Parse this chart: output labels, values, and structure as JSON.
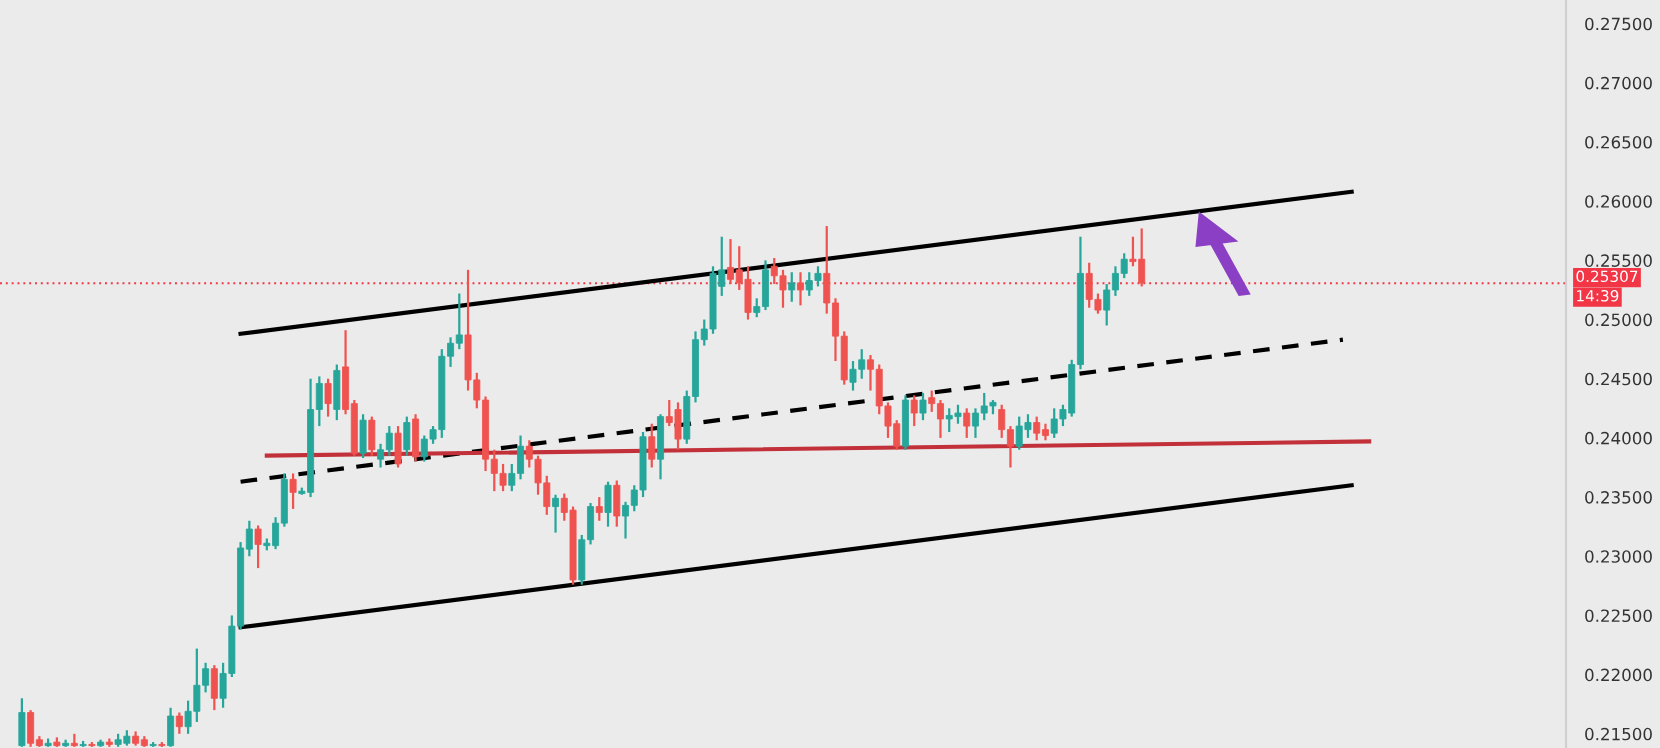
{
  "chart_data": {
    "type": "candlestick",
    "categories": [
      null,
      null,
      null,
      null,
      null,
      null,
      null,
      null,
      null,
      null,
      null,
      null,
      null,
      null,
      null,
      null,
      null,
      null,
      null,
      null,
      null,
      null,
      null,
      null,
      null,
      null,
      null,
      null,
      null,
      null,
      null,
      null,
      null,
      null,
      null,
      null,
      null,
      null,
      null,
      null,
      null,
      null,
      null,
      null,
      null,
      null,
      null,
      null,
      null,
      null,
      null,
      null,
      null,
      null,
      null,
      null,
      null,
      null,
      null,
      null,
      null,
      null,
      null,
      null,
      null,
      null,
      null,
      null,
      null,
      null,
      null,
      null,
      null,
      null,
      null,
      null,
      null,
      null,
      null,
      null,
      null,
      null,
      null,
      null,
      null,
      null,
      null,
      null,
      null,
      null,
      null,
      null,
      null,
      null,
      null,
      null,
      null,
      null,
      null,
      null,
      null,
      null,
      null,
      null,
      null,
      null,
      null,
      null,
      null,
      null,
      null,
      null,
      null,
      null,
      null,
      null,
      null,
      null,
      null,
      null,
      null,
      null,
      null,
      null,
      null,
      null,
      null,
      null,
      null,
      null,
      null,
      null,
      null,
      null,
      null,
      null,
      null,
      null,
      null,
      null,
      null,
      null,
      null,
      null,
      null,
      null,
      null,
      null,
      null,
      null,
      null,
      null,
      null,
      null,
      null,
      null,
      null,
      null,
      null,
      null,
      null,
      null,
      null,
      null,
      null,
      null,
      null,
      null,
      null,
      null,
      null,
      null,
      null,
      null,
      null,
      null,
      null,
      null,
      null
    ],
    "ohlc": [
      null,
      null,
      [
        0.214,
        0.218,
        0.2139,
        0.2168
      ],
      [
        0.2168,
        0.217,
        0.2139,
        0.2142
      ],
      [
        0.2145,
        0.2148,
        0.2139,
        0.214
      ],
      [
        0.214,
        0.2146,
        0.2139,
        0.2142
      ],
      [
        0.2143,
        0.2147,
        0.2139,
        0.214
      ],
      [
        0.214,
        0.2145,
        0.2139,
        0.2142
      ],
      [
        0.2142,
        0.215,
        0.2139,
        0.214
      ],
      [
        0.214,
        0.2144,
        0.2139,
        0.2141
      ],
      [
        0.2141,
        0.2143,
        0.2139,
        0.214
      ],
      [
        0.214,
        0.2145,
        0.2139,
        0.2143
      ],
      [
        0.2143,
        0.2146,
        0.2139,
        0.2141
      ],
      [
        0.2141,
        0.215,
        0.2139,
        0.2145
      ],
      [
        0.2142,
        0.2153,
        0.214,
        0.2148
      ],
      [
        0.2148,
        0.2152,
        0.214,
        0.2142
      ],
      [
        0.2145,
        0.2148,
        0.2139,
        0.214
      ],
      [
        0.214,
        0.2143,
        0.2139,
        0.2141
      ],
      [
        0.2141,
        0.2143,
        0.2139,
        0.214
      ],
      [
        0.214,
        0.2172,
        0.2139,
        0.2165
      ],
      [
        0.2165,
        0.2168,
        0.215,
        0.2156
      ],
      [
        0.2156,
        0.2178,
        0.215,
        0.2169
      ],
      [
        0.2169,
        0.2222,
        0.216,
        0.2191
      ],
      [
        0.2191,
        0.221,
        0.2185,
        0.2205
      ],
      [
        0.2205,
        0.2208,
        0.217,
        0.218
      ],
      [
        0.218,
        0.221,
        0.2172,
        0.2201
      ],
      [
        0.2201,
        0.225,
        0.2198,
        0.2241
      ],
      [
        0.2241,
        0.2312,
        0.2238,
        0.2307
      ],
      [
        0.2306,
        0.233,
        0.23,
        0.2323
      ],
      [
        0.2323,
        0.2326,
        0.229,
        0.231
      ],
      [
        0.2309,
        0.2315,
        0.2305,
        0.2311
      ],
      [
        0.2309,
        0.2333,
        0.2306,
        0.2328
      ],
      [
        0.2328,
        0.237,
        0.2325,
        0.2365
      ],
      [
        0.2365,
        0.237,
        0.234,
        0.2354
      ],
      [
        0.2353,
        0.2358,
        0.2352,
        0.2355
      ],
      [
        0.2354,
        0.245,
        0.235,
        0.2424
      ],
      [
        0.2424,
        0.2452,
        0.241,
        0.2446
      ],
      [
        0.2446,
        0.245,
        0.2418,
        0.2429
      ],
      [
        0.2424,
        0.2462,
        0.2415,
        0.2457
      ],
      [
        0.246,
        0.2491,
        0.242,
        0.2424
      ],
      [
        0.2429,
        0.2432,
        0.2385,
        0.2387
      ],
      [
        0.2387,
        0.242,
        0.2383,
        0.2415
      ],
      [
        0.2415,
        0.2418,
        0.2385,
        0.239
      ],
      [
        0.2382,
        0.2395,
        0.2375,
        0.239
      ],
      [
        0.239,
        0.241,
        0.2385,
        0.2404
      ],
      [
        0.2404,
        0.241,
        0.2375,
        0.2378
      ],
      [
        0.239,
        0.2418,
        0.2385,
        0.2413
      ],
      [
        0.2416,
        0.242,
        0.238,
        0.2384
      ],
      [
        0.2384,
        0.2402,
        0.238,
        0.2399
      ],
      [
        0.2399,
        0.241,
        0.2395,
        0.2407
      ],
      [
        0.2407,
        0.2475,
        0.24,
        0.2469
      ],
      [
        0.2469,
        0.2485,
        0.246,
        0.248
      ],
      [
        0.248,
        0.2522,
        0.2475,
        0.2487
      ],
      [
        0.2487,
        0.2542,
        0.244,
        0.2449
      ],
      [
        0.2449,
        0.2455,
        0.2425,
        0.2432
      ],
      [
        0.2432,
        0.2435,
        0.2372,
        0.2382
      ],
      [
        0.2382,
        0.239,
        0.2355,
        0.237
      ],
      [
        0.237,
        0.2378,
        0.2355,
        0.236
      ],
      [
        0.236,
        0.2378,
        0.2355,
        0.237
      ],
      [
        0.237,
        0.2402,
        0.2365,
        0.2393
      ],
      [
        0.2393,
        0.2398,
        0.2375,
        0.2382
      ],
      [
        0.2382,
        0.2385,
        0.2352,
        0.2362
      ],
      [
        0.2362,
        0.2368,
        0.2335,
        0.2342
      ],
      [
        0.2342,
        0.2352,
        0.232,
        0.2349
      ],
      [
        0.2349,
        0.2353,
        0.233,
        0.2337
      ],
      [
        0.2339,
        0.2342,
        0.2276,
        0.228
      ],
      [
        0.228,
        0.2318,
        0.2276,
        0.2314
      ],
      [
        0.2314,
        0.2345,
        0.231,
        0.2342
      ],
      [
        0.2342,
        0.235,
        0.233,
        0.2337
      ],
      [
        0.2337,
        0.2363,
        0.2325,
        0.236
      ],
      [
        0.236,
        0.2364,
        0.2325,
        0.2334
      ],
      [
        0.2334,
        0.2346,
        0.2315,
        0.2343
      ],
      [
        0.2343,
        0.236,
        0.2338,
        0.2356
      ],
      [
        0.2356,
        0.2405,
        0.235,
        0.2401
      ],
      [
        0.2401,
        0.2412,
        0.2375,
        0.2382
      ],
      [
        0.2382,
        0.242,
        0.2365,
        0.2418
      ],
      [
        0.2418,
        0.2432,
        0.241,
        0.2413
      ],
      [
        0.2424,
        0.243,
        0.239,
        0.2399
      ],
      [
        0.2399,
        0.244,
        0.2395,
        0.2435
      ],
      [
        0.2435,
        0.249,
        0.243,
        0.2483
      ],
      [
        0.2483,
        0.25,
        0.2478,
        0.2492
      ],
      [
        0.2492,
        0.2545,
        0.2488,
        0.2539
      ],
      [
        0.2528,
        0.257,
        0.252,
        0.2542
      ],
      [
        0.2544,
        0.2568,
        0.253,
        0.2534
      ],
      [
        0.2542,
        0.2562,
        0.2525,
        0.2531
      ],
      [
        0.2534,
        0.2545,
        0.25,
        0.2506
      ],
      [
        0.2506,
        0.2518,
        0.2502,
        0.2511
      ],
      [
        0.2511,
        0.255,
        0.2508,
        0.2542
      ],
      [
        0.2545,
        0.2552,
        0.253,
        0.2537
      ],
      [
        0.2537,
        0.2542,
        0.251,
        0.2525
      ],
      [
        0.2525,
        0.254,
        0.2515,
        0.2531
      ],
      [
        0.2531,
        0.254,
        0.2512,
        0.2525
      ],
      [
        0.2525,
        0.254,
        0.252,
        0.2533
      ],
      [
        0.2533,
        0.2545,
        0.2528,
        0.2539
      ],
      [
        0.2539,
        0.2579,
        0.2505,
        0.2514
      ],
      [
        0.2514,
        0.2518,
        0.2465,
        0.2486
      ],
      [
        0.2486,
        0.249,
        0.2445,
        0.2449
      ],
      [
        0.2447,
        0.2465,
        0.244,
        0.2458
      ],
      [
        0.2458,
        0.2475,
        0.245,
        0.2466
      ],
      [
        0.2466,
        0.247,
        0.244,
        0.2458
      ],
      [
        0.2458,
        0.2462,
        0.242,
        0.2427
      ],
      [
        0.2427,
        0.243,
        0.24,
        0.241
      ],
      [
        0.2412,
        0.2415,
        0.239,
        0.2393
      ],
      [
        0.2393,
        0.2436,
        0.239,
        0.2432
      ],
      [
        0.2432,
        0.2436,
        0.241,
        0.2421
      ],
      [
        0.2421,
        0.2438,
        0.2415,
        0.2432
      ],
      [
        0.2434,
        0.244,
        0.2422,
        0.2429
      ],
      [
        0.2429,
        0.2432,
        0.24,
        0.2416
      ],
      [
        0.2416,
        0.2425,
        0.2405,
        0.2419
      ],
      [
        0.2418,
        0.2428,
        0.2412,
        0.2421
      ],
      [
        0.2421,
        0.2425,
        0.24,
        0.241
      ],
      [
        0.241,
        0.2425,
        0.24,
        0.2421
      ],
      [
        0.2421,
        0.2438,
        0.2415,
        0.2427
      ],
      [
        0.2427,
        0.2432,
        0.242,
        0.243
      ],
      [
        0.2424,
        0.2428,
        0.24,
        0.2407
      ],
      [
        0.2407,
        0.241,
        0.2375,
        0.2393
      ],
      [
        0.2393,
        0.2418,
        0.239,
        0.241
      ],
      [
        0.2407,
        0.242,
        0.24,
        0.2413
      ],
      [
        0.2413,
        0.2418,
        0.2398,
        0.2404
      ],
      [
        0.2407,
        0.2412,
        0.2398,
        0.2402
      ],
      [
        0.2404,
        0.2425,
        0.24,
        0.2416
      ],
      [
        0.2416,
        0.2428,
        0.241,
        0.2424
      ],
      [
        0.2421,
        0.2466,
        0.2418,
        0.2462
      ],
      [
        0.2462,
        0.257,
        0.2458,
        0.2539
      ],
      [
        0.2539,
        0.2548,
        0.251,
        0.2517
      ],
      [
        0.2517,
        0.2522,
        0.2505,
        0.2508
      ],
      [
        0.2508,
        0.253,
        0.2495,
        0.2525
      ],
      [
        0.2525,
        0.2545,
        0.252,
        0.2539
      ],
      [
        0.2539,
        0.2556,
        0.2535,
        0.2551
      ],
      [
        0.2551,
        0.257,
        0.2545,
        0.2549
      ],
      [
        0.2551,
        0.2577,
        0.2528,
        0.2531
      ],
      null,
      null,
      null,
      null,
      null,
      null,
      null,
      null,
      null,
      null,
      null,
      null,
      null,
      null,
      null,
      null,
      null,
      null,
      null,
      null,
      null,
      null,
      null,
      null,
      null,
      null,
      null,
      null,
      null,
      null,
      null,
      null,
      null,
      null,
      null,
      null,
      null,
      null,
      null,
      null,
      null,
      null,
      null,
      null,
      null,
      null,
      null,
      null
    ],
    "colors": [
      null,
      null,
      "#26a69a",
      "#ef5350",
      "#ef5350",
      "#26a69a",
      "#ef5350",
      "#26a69a",
      "#ef5350",
      "#26a69a",
      "#ef5350",
      "#26a69a",
      "#ef5350",
      "#26a69a",
      "#26a69a",
      "#ef5350",
      "#ef5350",
      "#26a69a",
      "#ef5350",
      "#26a69a",
      "#ef5350",
      "#26a69a",
      "#26a69a",
      "#26a69a",
      "#ef5350",
      "#26a69a",
      "#26a69a",
      "#26a69a",
      "#26a69a",
      "#ef5350",
      "#26a69a",
      "#26a69a",
      "#26a69a",
      "#ef5350",
      "#26a69a",
      "#26a69a",
      "#26a69a",
      "#ef5350",
      "#26a69a",
      "#ef5350",
      "#ef5350",
      "#26a69a",
      "#ef5350",
      "#26a69a",
      "#26a69a",
      "#ef5350",
      "#26a69a",
      "#ef5350",
      "#26a69a",
      "#26a69a",
      "#26a69a",
      "#26a69a",
      "#26a69a",
      "#ef5350",
      "#ef5350",
      "#ef5350",
      "#ef5350",
      "#ef5350",
      "#26a69a",
      "#26a69a",
      "#ef5350",
      "#ef5350",
      "#ef5350",
      "#26a69a",
      "#ef5350",
      "#ef5350",
      "#26a69a",
      "#26a69a",
      "#ef5350",
      "#26a69a",
      "#ef5350",
      "#26a69a",
      "#26a69a",
      "#26a69a",
      "#ef5350",
      "#26a69a",
      "#ef5350",
      "#ef5350",
      "#26a69a",
      "#26a69a",
      "#26a69a",
      "#26a69a",
      "#26a69a",
      "#ef5350",
      "#ef5350",
      "#ef5350",
      "#26a69a",
      "#26a69a",
      "#ef5350",
      "#ef5350",
      "#26a69a",
      "#ef5350",
      "#26a69a",
      "#26a69a",
      "#ef5350",
      "#ef5350",
      "#ef5350",
      "#26a69a",
      "#26a69a",
      "#ef5350",
      "#ef5350",
      "#ef5350",
      "#ef5350",
      "#26a69a",
      "#ef5350",
      "#26a69a",
      "#ef5350",
      "#ef5350",
      "#26a69a",
      "#26a69a",
      "#ef5350",
      "#26a69a",
      "#26a69a",
      "#26a69a",
      "#ef5350",
      "#ef5350",
      "#26a69a",
      "#26a69a",
      "#ef5350",
      "#ef5350",
      "#26a69a",
      "#26a69a",
      "#26a69a",
      "#26a69a",
      "#ef5350",
      "#ef5350",
      "#26a69a",
      "#26a69a",
      "#26a69a",
      "#ef5350",
      "#ef5350",
      null,
      null,
      null,
      null,
      null,
      null,
      null,
      null,
      null,
      null,
      null,
      null,
      null,
      null,
      null,
      null,
      null,
      null,
      null,
      null,
      null,
      null,
      null,
      null,
      null,
      null,
      null,
      null,
      null,
      null,
      null,
      null,
      null,
      null,
      null,
      null,
      null,
      null,
      null,
      null,
      null,
      null,
      null,
      null,
      null,
      null,
      null,
      null
    ],
    "ylim": [
      0.2138,
      0.277
    ],
    "yticks": [
      {
        "value": 0.215,
        "label": "0.21500"
      },
      {
        "value": 0.22,
        "label": "0.22000"
      },
      {
        "value": 0.225,
        "label": "0.22500"
      },
      {
        "value": 0.23,
        "label": "0.23000"
      },
      {
        "value": 0.235,
        "label": "0.23500"
      },
      {
        "value": 0.24,
        "label": "0.24000"
      },
      {
        "value": 0.245,
        "label": "0.24500"
      },
      {
        "value": 0.25,
        "label": "0.25000"
      },
      {
        "value": 0.255,
        "label": "0.25500"
      },
      {
        "value": 0.26,
        "label": "0.26000"
      },
      {
        "value": 0.265,
        "label": "0.26500"
      },
      {
        "value": 0.27,
        "label": "0.27000"
      },
      {
        "value": 0.275,
        "label": "0.27500"
      }
    ],
    "tick_labels": "y",
    "grid": false,
    "legend": false,
    "ref_lines": [
      {
        "axis": "y",
        "value": 0.25307,
        "label": "0.25307",
        "color": "#f23645",
        "line_style": "dotted"
      }
    ],
    "annotations": [
      "14:39"
    ],
    "series": [
      {
        "type": "line",
        "values": [
          null,
          null,
          null,
          null,
          null,
          null,
          null,
          null,
          null,
          null,
          null,
          null,
          null,
          null,
          null,
          null,
          null,
          null,
          null,
          null,
          null,
          null,
          null,
          null,
          null,
          null,
          null,
          0.2488,
          null,
          null,
          null,
          null,
          null,
          null,
          null,
          null,
          null,
          null,
          null,
          null,
          null,
          null,
          null,
          null,
          null,
          null,
          null,
          null,
          null,
          null,
          null,
          null,
          null,
          null,
          null,
          null,
          null,
          null,
          null,
          null,
          null,
          null,
          null,
          null,
          null,
          null,
          null,
          null,
          null,
          null,
          null,
          null,
          null,
          null,
          null,
          null,
          null,
          null,
          null,
          null,
          null,
          null,
          null,
          null,
          null,
          null,
          null,
          null,
          null,
          null,
          null,
          null,
          null,
          null,
          null,
          null,
          null,
          null,
          null,
          null,
          null,
          null,
          null,
          null,
          null,
          null,
          null,
          null,
          null,
          null,
          null,
          null,
          null,
          null,
          null,
          null,
          null,
          null,
          null,
          null,
          null,
          null,
          null,
          null,
          null,
          null,
          null,
          null,
          null,
          null,
          null,
          null,
          null,
          null,
          null,
          null,
          null,
          null,
          null,
          null,
          null,
          null,
          null,
          null,
          null,
          null,
          null,
          null,
          null,
          null,
          null,
          null,
          null,
          null,
          0.2608,
          null,
          null,
          null,
          null,
          null,
          null,
          null,
          null,
          null,
          null,
          null,
          null,
          null,
          null,
          null,
          null,
          null,
          null,
          null,
          null,
          null,
          null,
          null,
          null
        ],
        "color": "#000000",
        "line_style": "solid"
      },
      {
        "type": "line",
        "values": [
          null,
          null,
          null,
          null,
          null,
          null,
          null,
          null,
          null,
          null,
          null,
          null,
          null,
          null,
          null,
          null,
          null,
          null,
          null,
          null,
          null,
          null,
          null,
          null,
          null,
          null,
          null,
          0.2363,
          null,
          null,
          null,
          null,
          null,
          null,
          null,
          null,
          null,
          null,
          null,
          null,
          null,
          null,
          null,
          null,
          null,
          null,
          null,
          null,
          null,
          null,
          null,
          null,
          null,
          null,
          null,
          null,
          null,
          null,
          null,
          null,
          null,
          null,
          null,
          null,
          null,
          null,
          null,
          null,
          null,
          null,
          null,
          null,
          null,
          null,
          null,
          null,
          null,
          null,
          null,
          null,
          null,
          null,
          null,
          null,
          null,
          null,
          null,
          null,
          null,
          null,
          null,
          null,
          null,
          null,
          null,
          null,
          null,
          null,
          null,
          null,
          null,
          null,
          null,
          null,
          null,
          null,
          null,
          null,
          null,
          null,
          null,
          null,
          null,
          null,
          null,
          null,
          null,
          null,
          null,
          null,
          null,
          null,
          null,
          null,
          null,
          null,
          null,
          null,
          null,
          null,
          null,
          null,
          null,
          null,
          null,
          null,
          null,
          null,
          null,
          null,
          null,
          null,
          null,
          null,
          null,
          null,
          null,
          null,
          null,
          null,
          null,
          null,
          null,
          0.2483,
          null,
          null,
          null,
          null,
          null,
          null,
          null,
          null,
          null,
          null,
          null,
          null,
          null,
          null,
          null,
          null,
          null,
          null,
          null,
          null,
          null,
          null,
          null,
          null,
          null
        ],
        "color": "#000000",
        "line_style": "dashed"
      },
      {
        "type": "line",
        "values": [
          null,
          null,
          null,
          null,
          null,
          null,
          null,
          null,
          null,
          null,
          null,
          null,
          null,
          null,
          null,
          null,
          null,
          null,
          null,
          null,
          null,
          null,
          null,
          null,
          null,
          null,
          null,
          0.224,
          null,
          null,
          null,
          null,
          null,
          null,
          null,
          null,
          null,
          null,
          null,
          null,
          null,
          null,
          null,
          null,
          null,
          null,
          null,
          null,
          null,
          null,
          null,
          null,
          null,
          null,
          null,
          null,
          null,
          null,
          null,
          null,
          null,
          null,
          null,
          null,
          null,
          null,
          null,
          null,
          null,
          null,
          null,
          null,
          null,
          null,
          null,
          null,
          null,
          null,
          null,
          null,
          null,
          null,
          null,
          null,
          null,
          null,
          null,
          null,
          null,
          null,
          null,
          null,
          null,
          null,
          null,
          null,
          null,
          null,
          null,
          null,
          null,
          null,
          null,
          null,
          null,
          null,
          null,
          null,
          null,
          null,
          null,
          null,
          null,
          null,
          null,
          null,
          null,
          null,
          null,
          null,
          null,
          null,
          null,
          null,
          null,
          null,
          null,
          null,
          null,
          null,
          null,
          null,
          null,
          null,
          null,
          null,
          null,
          null,
          null,
          null,
          null,
          null,
          null,
          null,
          null,
          null,
          null,
          null,
          null,
          null,
          null,
          null,
          null,
          null,
          0.236,
          null,
          null,
          null,
          null,
          null,
          null,
          null,
          null,
          null,
          null,
          null,
          null,
          null,
          null,
          null,
          null,
          null,
          null,
          null,
          null,
          null,
          null,
          null,
          null
        ],
        "color": "#000000",
        "line_style": "solid"
      },
      {
        "type": "line",
        "values": [
          null,
          null,
          null,
          null,
          null,
          null,
          null,
          null,
          null,
          null,
          null,
          null,
          null,
          null,
          null,
          null,
          null,
          null,
          null,
          null,
          null,
          null,
          null,
          null,
          null,
          null,
          null,
          null,
          null,
          null,
          0.2385,
          null,
          null,
          null,
          null,
          null,
          null,
          null,
          null,
          null,
          null,
          null,
          null,
          null,
          null,
          null,
          null,
          null,
          null,
          null,
          null,
          null,
          null,
          null,
          null,
          null,
          null,
          null,
          null,
          null,
          null,
          null,
          null,
          null,
          null,
          null,
          null,
          null,
          null,
          null,
          null,
          null,
          null,
          null,
          null,
          null,
          null,
          null,
          null,
          null,
          null,
          null,
          null,
          null,
          null,
          null,
          null,
          null,
          null,
          null,
          null,
          null,
          null,
          null,
          null,
          null,
          null,
          null,
          null,
          null,
          null,
          null,
          null,
          null,
          null,
          null,
          null,
          null,
          null,
          null,
          null,
          null,
          null,
          null,
          null,
          null,
          null,
          null,
          null,
          null,
          null,
          null,
          null,
          null,
          null,
          null,
          null,
          null,
          null,
          null,
          null,
          null,
          null,
          null,
          null,
          null,
          null,
          null,
          null,
          null,
          null,
          null,
          null,
          null,
          null,
          null,
          null,
          null,
          null,
          null,
          null,
          null,
          null,
          null,
          null,
          null,
          0.2397,
          null,
          null,
          null,
          null,
          null,
          null,
          null,
          null,
          null,
          null,
          null,
          null,
          null,
          null,
          null,
          null,
          null,
          null,
          null,
          null,
          null,
          null
        ],
        "color": "#c2303a",
        "line_style": "solid"
      }
    ]
  }
}
